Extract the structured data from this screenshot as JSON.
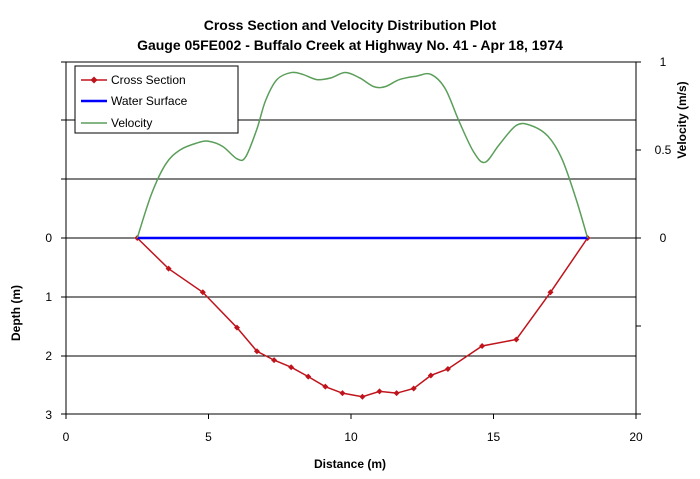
{
  "chart_data": {
    "type": "line",
    "title": "Cross Section and Velocity Distribution Plot",
    "subtitle": "Gauge 05FE002 - Buffalo Creek at Highway No. 41 - Apr 18, 1974",
    "xlabel": "Distance (m)",
    "ylabel_left": "Depth (m)",
    "ylabel_right": "Velocity (m/s)",
    "xlim": [
      0,
      20
    ],
    "x_ticks": [
      "0",
      "5",
      "10",
      "15",
      "20"
    ],
    "depth_ticks": [
      "0",
      "1",
      "2",
      "3"
    ],
    "velocity_ticks": [
      "0",
      "0.5",
      "1"
    ],
    "depth_range": [
      0,
      3
    ],
    "velocity_range": [
      0,
      1
    ],
    "grid": true,
    "legend_position": "top-left",
    "series": [
      {
        "name": "Cross Section",
        "color": "#c0141c",
        "marker": "diamond",
        "axis": "depth",
        "points": [
          [
            2.5,
            0.0
          ],
          [
            3.6,
            0.52
          ],
          [
            4.8,
            0.92
          ],
          [
            6.0,
            1.52
          ],
          [
            6.7,
            1.92
          ],
          [
            7.3,
            2.07
          ],
          [
            7.9,
            2.19
          ],
          [
            8.5,
            2.35
          ],
          [
            9.1,
            2.52
          ],
          [
            9.7,
            2.63
          ],
          [
            10.4,
            2.69
          ],
          [
            11.0,
            2.6
          ],
          [
            11.6,
            2.63
          ],
          [
            12.2,
            2.55
          ],
          [
            12.8,
            2.33
          ],
          [
            13.4,
            2.22
          ],
          [
            14.6,
            1.83
          ],
          [
            15.8,
            1.72
          ],
          [
            17.0,
            0.92
          ],
          [
            18.3,
            0.0
          ]
        ]
      },
      {
        "name": "Water Surface",
        "color": "#0000ff",
        "marker": "none",
        "axis": "depth",
        "points": [
          [
            2.5,
            0.0
          ],
          [
            18.3,
            0.0
          ]
        ]
      },
      {
        "name": "Velocity",
        "color": "#5a9e5a",
        "marker": "none",
        "axis": "velocity",
        "points": [
          [
            2.5,
            0.0
          ],
          [
            3.0,
            0.25
          ],
          [
            3.5,
            0.42
          ],
          [
            4.0,
            0.5
          ],
          [
            4.6,
            0.54
          ],
          [
            5.0,
            0.55
          ],
          [
            5.5,
            0.52
          ],
          [
            6.0,
            0.45
          ],
          [
            6.3,
            0.46
          ],
          [
            6.7,
            0.62
          ],
          [
            7.0,
            0.78
          ],
          [
            7.4,
            0.9
          ],
          [
            7.9,
            0.94
          ],
          [
            8.3,
            0.93
          ],
          [
            8.8,
            0.9
          ],
          [
            9.3,
            0.91
          ],
          [
            9.8,
            0.94
          ],
          [
            10.3,
            0.91
          ],
          [
            10.8,
            0.86
          ],
          [
            11.2,
            0.86
          ],
          [
            11.7,
            0.9
          ],
          [
            12.3,
            0.92
          ],
          [
            12.8,
            0.93
          ],
          [
            13.3,
            0.85
          ],
          [
            13.8,
            0.66
          ],
          [
            14.3,
            0.49
          ],
          [
            14.7,
            0.43
          ],
          [
            15.2,
            0.53
          ],
          [
            15.8,
            0.64
          ],
          [
            16.3,
            0.64
          ],
          [
            16.9,
            0.58
          ],
          [
            17.4,
            0.45
          ],
          [
            17.9,
            0.22
          ],
          [
            18.3,
            0.0
          ]
        ]
      }
    ]
  }
}
